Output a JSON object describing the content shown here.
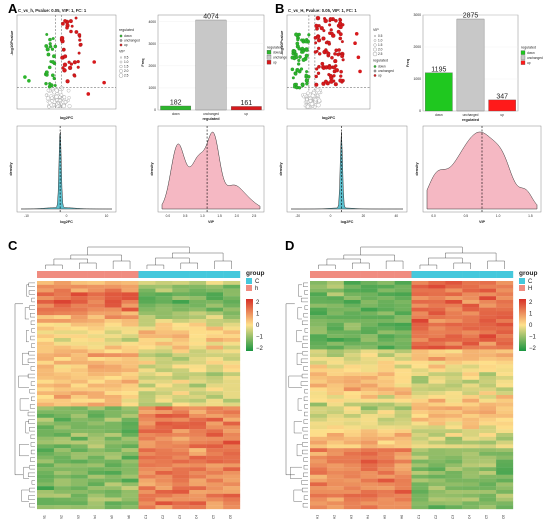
{
  "panels": {
    "A": {
      "label": "A"
    },
    "B": {
      "label": "B"
    },
    "C": {
      "label": "C"
    },
    "D": {
      "label": "D"
    }
  },
  "chart_data": [
    {
      "id": "A-volcano",
      "type": "scatter",
      "title": "C_vs_h, Pvalue: 0.05, VIP: 1, FC: 1",
      "xlabel": "log2FC",
      "ylabel": "-log10Pvalue",
      "legend_title": "regulated",
      "legend_items": [
        "down",
        "unchanged",
        "up"
      ],
      "legend2_title": "VIP",
      "legend2_items": [
        "0.5",
        "1.0",
        "1.5",
        "2.0",
        "2.5"
      ],
      "colors": {
        "down": "#2db52d",
        "unchanged": "#9a9a9a",
        "up": "#d7191c"
      }
    },
    {
      "id": "A-bar",
      "type": "bar",
      "xlabel": "regulated",
      "ylabel": "Freq",
      "categories": [
        "down",
        "unchanged",
        "up"
      ],
      "values": [
        182,
        4074,
        161
      ],
      "ylim": [
        0,
        4300
      ],
      "yticks": [
        "0",
        "1000",
        "2000",
        "3000",
        "4000"
      ],
      "legend_title": "regulated",
      "legend_items": [
        "down",
        "unchanged",
        "up"
      ],
      "colors": [
        "#2db52d",
        "#c8c8c8",
        "#d7191c"
      ]
    },
    {
      "id": "A-density-fc",
      "type": "area",
      "xlabel": "log2FC",
      "ylabel": "density",
      "xticks": [
        "-10",
        "0",
        "10"
      ],
      "fill": "#5bc0cf"
    },
    {
      "id": "A-density-vip",
      "type": "area",
      "xlabel": "VIP",
      "ylabel": "density",
      "xticks": [
        "0.0",
        "0.5",
        "1.0",
        "1.5",
        "2.0",
        "2.5"
      ],
      "fill": "#f5b8c3"
    },
    {
      "id": "B-volcano",
      "type": "scatter",
      "title": "C_vs_H, Pvalue: 0.05, VIP: 1, FC: 1",
      "xlabel": "log2FC",
      "ylabel": "-log10Pvalue",
      "legend_title": "VIP",
      "legend_items": [
        "0.5",
        "1.0",
        "1.5",
        "2.0",
        "2.5"
      ],
      "legend2_title": "regulated",
      "legend2_items": [
        "down",
        "unchanged",
        "up"
      ],
      "colors": {
        "down": "#2db52d",
        "unchanged": "#9a9a9a",
        "up": "#d7191c"
      }
    },
    {
      "id": "B-bar",
      "type": "bar",
      "xlabel": "regulated",
      "ylabel": "Freq",
      "categories": [
        "down",
        "unchanged",
        "up"
      ],
      "values": [
        1195,
        2875,
        347
      ],
      "ylim": [
        0,
        3000
      ],
      "yticks": [
        "0",
        "1000",
        "2000",
        "3000"
      ],
      "legend_title": "regulated",
      "legend_items": [
        "down",
        "unchanged",
        "up"
      ],
      "colors": [
        "#1fc81f",
        "#c8c8c8",
        "#ff1a1a"
      ]
    },
    {
      "id": "B-density-fc",
      "type": "area",
      "xlabel": "log2FC",
      "ylabel": "density",
      "xticks": [
        "-20",
        "0",
        "20",
        "40"
      ],
      "fill": "#5bc0cf"
    },
    {
      "id": "B-density-vip",
      "type": "area",
      "xlabel": "VIP",
      "ylabel": "density",
      "xticks": [
        "0.0",
        "0.5",
        "1.0",
        "1.5"
      ],
      "fill": "#f5b8c3"
    },
    {
      "id": "C-heatmap",
      "type": "heatmap",
      "legend_title": "group",
      "group_labels": [
        "C",
        "h"
      ],
      "group_colors": [
        "#45c8dc",
        "#f08c80"
      ],
      "scale_ticks": [
        "2",
        "1",
        "0",
        "-1",
        "-2"
      ],
      "scale_colors": [
        "#d73027",
        "#fee08b",
        "#1a9641"
      ],
      "n_columns": 12
    },
    {
      "id": "D-heatmap",
      "type": "heatmap",
      "legend_title": "group",
      "group_labels": [
        "C",
        "H"
      ],
      "group_colors": [
        "#45c8dc",
        "#f08c80"
      ],
      "scale_ticks": [
        "2",
        "1",
        "0",
        "-1",
        "-2"
      ],
      "scale_colors": [
        "#d73027",
        "#fee08b",
        "#1a9641"
      ],
      "n_columns": 12
    }
  ]
}
